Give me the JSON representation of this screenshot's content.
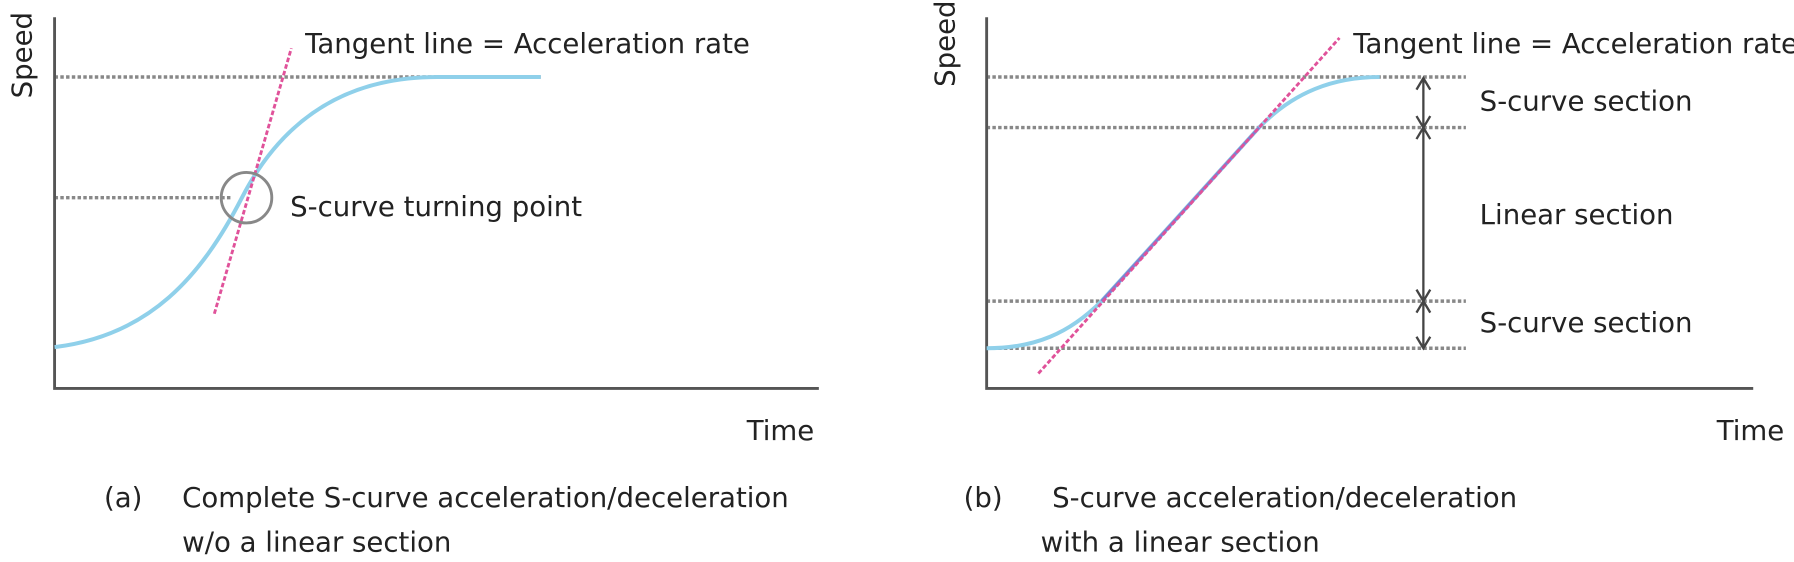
{
  "panels": [
    {
      "y_label": "Speed",
      "x_label": "Time",
      "tangent_label": "Tangent line = Acceleration rate",
      "point_label": "S-curve turning point",
      "caption": {
        "tag": "(a)",
        "lines": [
          "Complete S-curve acceleration/deceleration",
          "w/o a linear section"
        ]
      }
    },
    {
      "y_label": "Speed",
      "x_label": "Time",
      "tangent_label": "Tangent line = Acceleration rate",
      "sections": [
        "S-curve section",
        "Linear section",
        "S-curve section"
      ],
      "caption": {
        "tag": "(b)",
        "lines": [
          "S-curve acceleration/deceleration",
          "with a linear section"
        ]
      }
    }
  ]
}
